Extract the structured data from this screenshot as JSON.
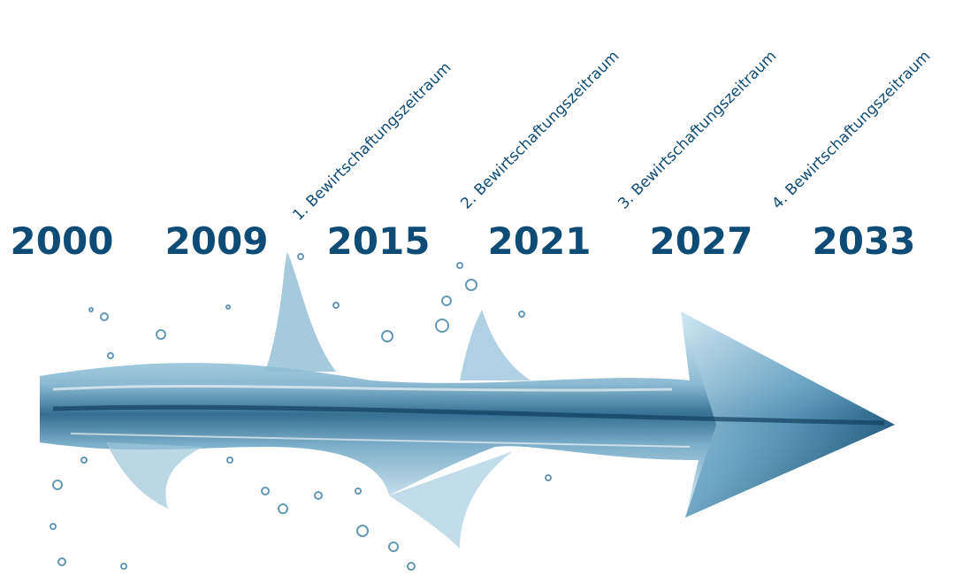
{
  "timeline": {
    "years": [
      "2000",
      "2009",
      "2015",
      "2021",
      "2027",
      "2033"
    ],
    "periods": [
      "1. Bewirtschaftungszeitraum",
      "2. Bewirtschaftungszeitraum",
      "3. Bewirtschaftungszeitraum",
      "4. Bewirtschaftungszeitraum"
    ]
  }
}
